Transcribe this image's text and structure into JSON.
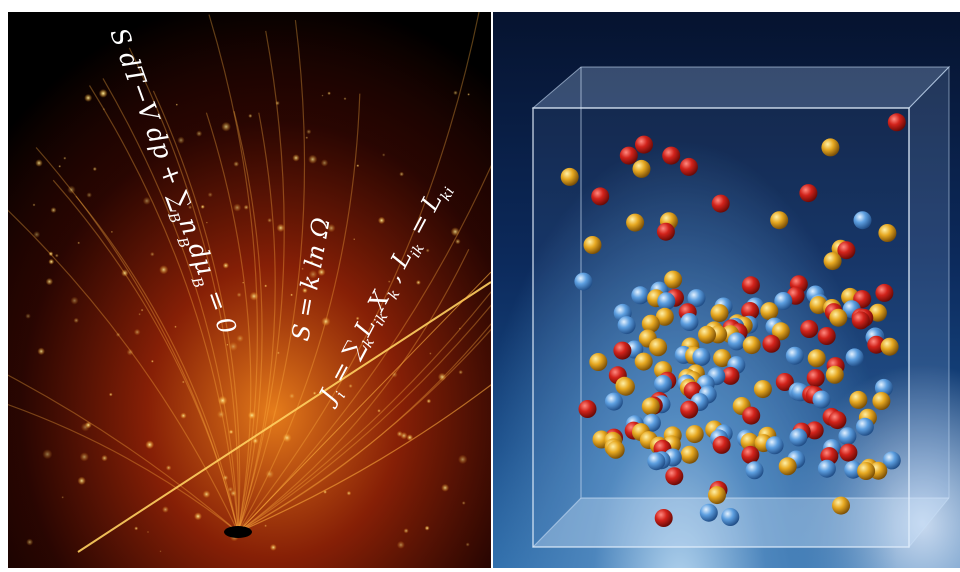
{
  "equations": {
    "eq1": "S dT−V dp + ∑",
    "eq1_sub": "B",
    "eq1_tail": "n",
    "eq1_tail_sub": "B",
    "eq1_end": "dμ",
    "eq1_end_sub": "B",
    "eq1_eq": " = 0",
    "eq2": "S = k ln Ω",
    "eq3": "J",
    "eq3_sub_i": "i",
    "eq3_mid": " = ∑",
    "eq3_sub_k": "k",
    "eq3_L": "L",
    "eq3_sub_ik": "ik",
    "eq3_X": "X",
    "eq3_sub_k2": "k",
    "eq3_comma": " ,  L",
    "eq3_sub_ik2": "ik",
    "eq3_eq": " = L",
    "eq3_sub_ki": "ki"
  },
  "particles": {
    "colors": {
      "red": "#d2231b",
      "blue": "#5d9fe0",
      "gold": "#e7a922"
    }
  }
}
